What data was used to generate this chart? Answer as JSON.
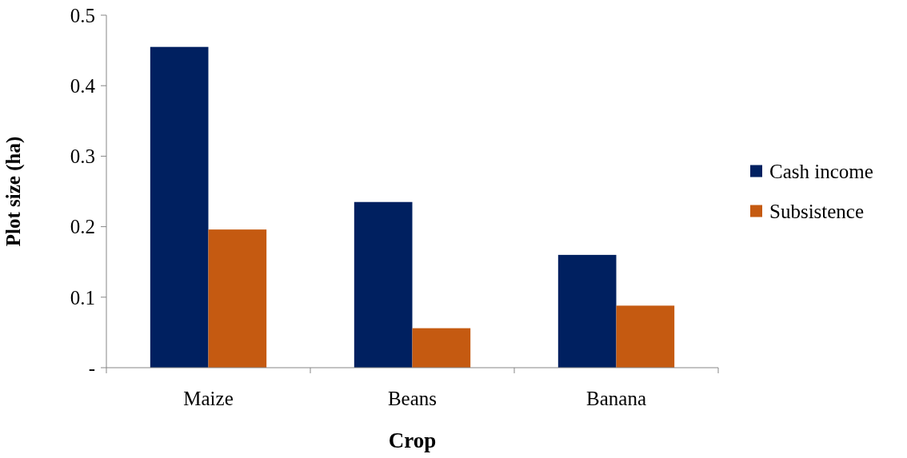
{
  "chart_data": {
    "type": "bar",
    "xlabel": "Crop",
    "ylabel": "Plot size (ha)",
    "categories": [
      "Maize",
      "Beans",
      "Banana"
    ],
    "series": [
      {
        "name": "Cash income",
        "color": "#002060",
        "values": [
          0.455,
          0.235,
          0.16
        ]
      },
      {
        "name": "Subsistence",
        "color": "#c55a11",
        "values": [
          0.196,
          0.056,
          0.088
        ]
      }
    ],
    "ylim": [
      0,
      0.5
    ],
    "yticks": [
      {
        "value": 0,
        "label": "-"
      },
      0.1,
      0.2,
      0.3,
      0.4,
      0.5
    ],
    "grid": false,
    "legend": "right"
  }
}
